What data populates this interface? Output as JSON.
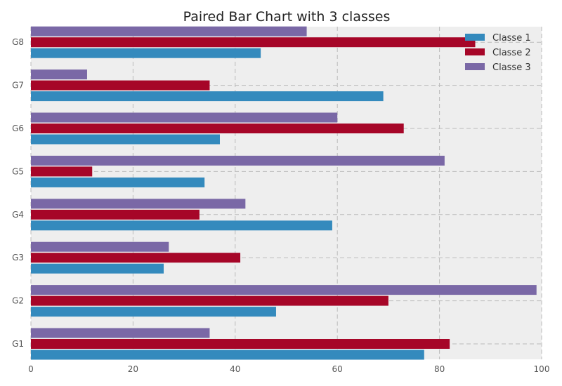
{
  "chart_data": {
    "type": "bar",
    "orientation": "horizontal",
    "title": "Paired Bar Chart with 3 classes",
    "xlabel": "",
    "ylabel": "",
    "xlim": [
      0,
      100
    ],
    "x_ticks": [
      "0",
      "20",
      "40",
      "60",
      "80",
      "100"
    ],
    "categories": [
      "G1",
      "G2",
      "G3",
      "G4",
      "G5",
      "G6",
      "G7",
      "G8"
    ],
    "series": [
      {
        "name": "Classe 1",
        "color": "#348ABD",
        "values": [
          77,
          48,
          26,
          59,
          34,
          37,
          69,
          45
        ]
      },
      {
        "name": "Classe 2",
        "color": "#A60628",
        "values": [
          82,
          70,
          41,
          33,
          12,
          73,
          35,
          87
        ]
      },
      {
        "name": "Classe 3",
        "color": "#7A68A6",
        "values": [
          35,
          99,
          27,
          42,
          81,
          60,
          11,
          54
        ]
      }
    ],
    "grid": true,
    "legend_position": "top-right",
    "background_color": "#EEEEEE"
  }
}
